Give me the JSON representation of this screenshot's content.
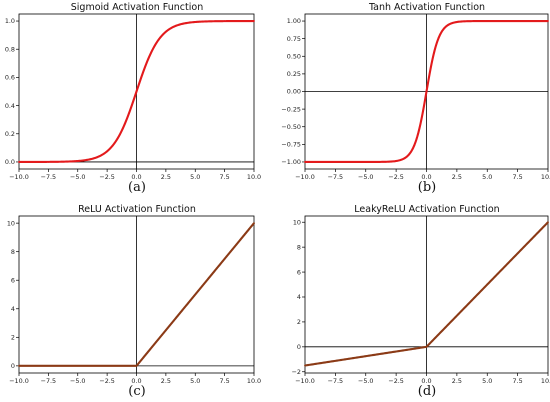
{
  "chart_data": [
    {
      "type": "line",
      "title": "Sigmoid Activation Function",
      "caption": "(a)",
      "function": "sigmoid",
      "xlabel": "",
      "ylabel": "",
      "xlim": [
        -10,
        10
      ],
      "ylim": [
        -0.05,
        1.05
      ],
      "xticks": [
        -10.0,
        -7.5,
        -5.0,
        -2.5,
        0.0,
        2.5,
        5.0,
        7.5,
        10.0
      ],
      "xtick_labels": [
        "−10.0",
        "−7.5",
        "−5.0",
        "−2.5",
        "0.0",
        "2.5",
        "5.0",
        "7.5",
        "10.0"
      ],
      "yticks": [
        0.0,
        0.2,
        0.4,
        0.6,
        0.8,
        1.0
      ],
      "ytick_labels": [
        "0.0",
        "0.2",
        "0.4",
        "0.6",
        "0.8",
        "1.0"
      ],
      "x": [
        -10,
        -7.5,
        -5,
        -2.5,
        -1,
        0,
        1,
        2.5,
        5,
        7.5,
        10
      ],
      "y": [
        5e-05,
        0.00055,
        0.0067,
        0.076,
        0.269,
        0.5,
        0.731,
        0.924,
        0.993,
        0.9994,
        0.99995
      ],
      "line_color": "#e31a1c",
      "grid": false
    },
    {
      "type": "line",
      "title": "Tanh Activation Function",
      "caption": "(b)",
      "function": "tanh",
      "xlabel": "",
      "ylabel": "",
      "xlim": [
        -10,
        10
      ],
      "ylim": [
        -1.1,
        1.1
      ],
      "xticks": [
        -10.0,
        -7.5,
        -5.0,
        -2.5,
        0.0,
        2.5,
        5.0,
        7.5,
        10.0
      ],
      "xtick_labels": [
        "−10.0",
        "−7.5",
        "−5.0",
        "−2.5",
        "0.0",
        "2.5",
        "5.0",
        "7.5",
        "10.0"
      ],
      "yticks": [
        -1.0,
        -0.75,
        -0.5,
        -0.25,
        0.0,
        0.25,
        0.5,
        0.75,
        1.0
      ],
      "ytick_labels": [
        "−1.00",
        "−0.75",
        "−0.50",
        "−0.25",
        "0.00",
        "0.25",
        "0.50",
        "0.75",
        "1.00"
      ],
      "x": [
        -10,
        -5,
        -2.5,
        -1,
        0,
        1,
        2.5,
        5,
        10
      ],
      "y": [
        -1.0,
        -0.9999,
        -0.987,
        -0.762,
        0.0,
        0.762,
        0.987,
        0.9999,
        1.0
      ],
      "line_color": "#e31a1c",
      "grid": false
    },
    {
      "type": "line",
      "title": "ReLU Activation Function",
      "caption": "(c)",
      "function": "relu",
      "xlabel": "",
      "ylabel": "",
      "xlim": [
        -10,
        10
      ],
      "ylim": [
        -0.5,
        10.5
      ],
      "xticks": [
        -10.0,
        -7.5,
        -5.0,
        -2.5,
        0.0,
        2.5,
        5.0,
        7.5,
        10.0
      ],
      "xtick_labels": [
        "−10.0",
        "−7.5",
        "−5.0",
        "−2.5",
        "0.0",
        "2.5",
        "5.0",
        "7.5",
        "10.0"
      ],
      "yticks": [
        0,
        2,
        4,
        6,
        8,
        10
      ],
      "ytick_labels": [
        "0",
        "2",
        "4",
        "6",
        "8",
        "10"
      ],
      "x": [
        -10,
        0,
        10
      ],
      "y": [
        0,
        0,
        10
      ],
      "line_color": "#8b3a16",
      "grid": false
    },
    {
      "type": "line",
      "title": "LeakyReLU Activation Function",
      "caption": "(d)",
      "function": "leaky_relu",
      "xlabel": "",
      "ylabel": "",
      "xlim": [
        -10,
        10
      ],
      "ylim": [
        -2.1,
        10.5
      ],
      "xticks": [
        -10.0,
        -7.5,
        -5.0,
        -2.5,
        0.0,
        2.5,
        5.0,
        7.5,
        10.0
      ],
      "xtick_labels": [
        "−10.0",
        "−7.5",
        "−5.0",
        "−2.5",
        "0.0",
        "2.5",
        "5.0",
        "7.5",
        "10.0"
      ],
      "yticks": [
        -2,
        0,
        2,
        4,
        6,
        8,
        10
      ],
      "ytick_labels": [
        "−2",
        "0",
        "2",
        "4",
        "6",
        "8",
        "10"
      ],
      "x": [
        -10,
        0,
        10
      ],
      "y": [
        -1.5,
        0,
        10
      ],
      "line_color": "#8b3a16",
      "grid": false
    }
  ]
}
